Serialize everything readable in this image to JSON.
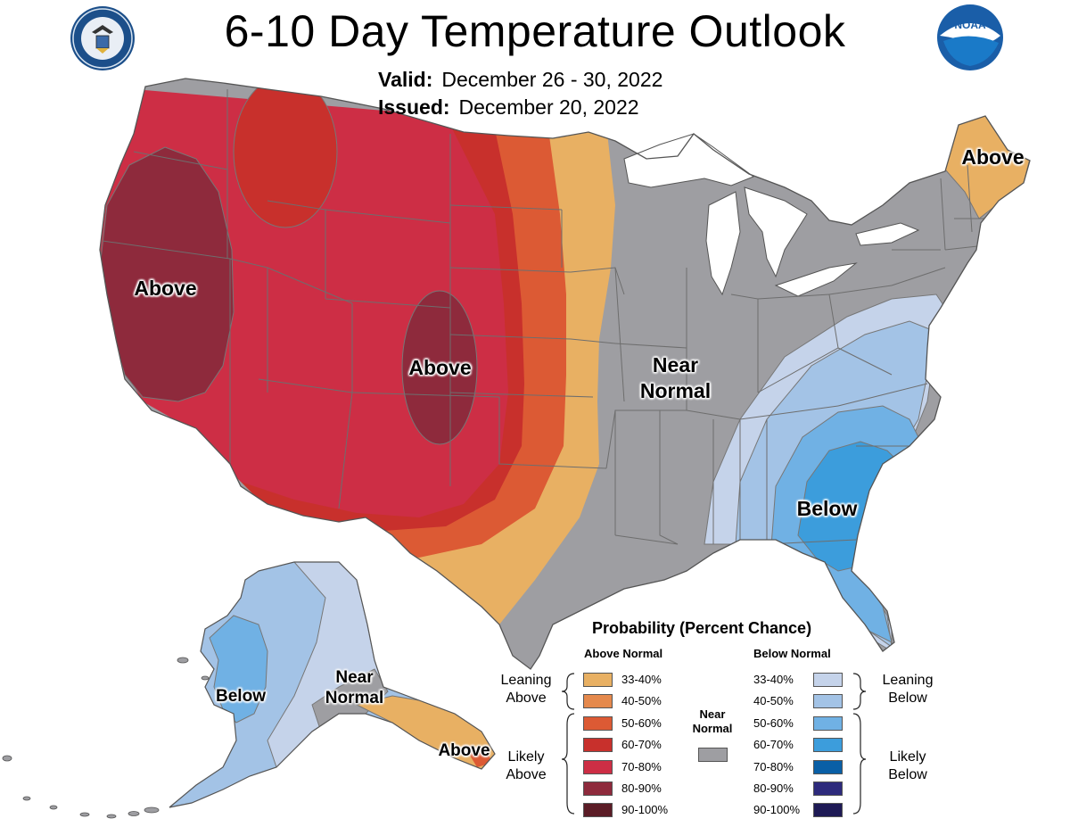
{
  "title": "6-10 Day Temperature Outlook",
  "valid": {
    "label": "Valid:",
    "value": "December 26 - 30, 2022"
  },
  "issued": {
    "label": "Issued:",
    "value": "December 20, 2022"
  },
  "logos": {
    "left": "doc-seal",
    "right": "noaa-logo",
    "noaa_text": "NOAA"
  },
  "map_labels": {
    "west_above": "Above",
    "plains_above": "Above",
    "maine_above": "Above",
    "central_near": "Near",
    "central_normal": "Normal",
    "southeast_below": "Below",
    "alaska_below": "Below",
    "alaska_near": "Near",
    "alaska_normal": "Normal",
    "alaska_se_above": "Above"
  },
  "legend": {
    "title": "Probability (Percent Chance)",
    "above_header": "Above Normal",
    "below_header": "Below Normal",
    "leaning_above_1": "Leaning",
    "leaning_above_2": "Above",
    "likely_above_1": "Likely",
    "likely_above_2": "Above",
    "leaning_below_1": "Leaning",
    "leaning_below_2": "Below",
    "likely_below_1": "Likely",
    "likely_below_2": "Below",
    "near_1": "Near",
    "near_2": "Normal",
    "near_color": "#9e9ea2",
    "above_bins": [
      {
        "range": "33-40%",
        "color": "#e8b063"
      },
      {
        "range": "40-50%",
        "color": "#e5894c"
      },
      {
        "range": "50-60%",
        "color": "#dc5a34"
      },
      {
        "range": "60-70%",
        "color": "#c8302c"
      },
      {
        "range": "70-80%",
        "color": "#cd2e45"
      },
      {
        "range": "80-90%",
        "color": "#8e2a3c"
      },
      {
        "range": "90-100%",
        "color": "#5b1c26"
      }
    ],
    "below_bins": [
      {
        "range": "33-40%",
        "color": "#c5d3ea"
      },
      {
        "range": "40-50%",
        "color": "#a3c3e6"
      },
      {
        "range": "50-60%",
        "color": "#70b1e4"
      },
      {
        "range": "60-70%",
        "color": "#3c9ddc"
      },
      {
        "range": "70-80%",
        "color": "#095fa6"
      },
      {
        "range": "80-90%",
        "color": "#2d2a7c"
      },
      {
        "range": "90-100%",
        "color": "#1e1a55"
      }
    ]
  }
}
